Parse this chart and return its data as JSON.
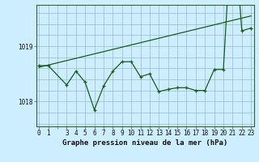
{
  "x_all": [
    0,
    1,
    3,
    4,
    5,
    6,
    7,
    8,
    9,
    10,
    11,
    12,
    13,
    14,
    15,
    16,
    17,
    18,
    19,
    20,
    21,
    22,
    23
  ],
  "actual_y": [
    1018.65,
    1018.65,
    1018.3,
    1018.55,
    1018.35,
    1017.85,
    1018.28,
    1018.55,
    1018.72,
    1018.72,
    1018.45,
    1018.5,
    1018.18,
    1018.22,
    1018.25,
    1018.25,
    1018.2,
    1018.2,
    1018.58,
    1018.58,
    1021.5,
    1019.28,
    1019.33
  ],
  "trend_x": [
    0,
    23
  ],
  "trend_y": [
    1018.62,
    1019.55
  ],
  "bg_color": "#cceeff",
  "line_color": "#1a5c1a",
  "grid_color_v": "#99bbcc",
  "grid_color_h": "#99bbcc",
  "yticks": [
    1018,
    1019
  ],
  "xtick_labels": [
    "0",
    "1",
    "",
    "3",
    "4",
    "5",
    "6",
    "7",
    "8",
    "9",
    "10",
    "11",
    "12",
    "13",
    "14",
    "15",
    "16",
    "17",
    "18",
    "19",
    "20",
    "21",
    "22",
    "23"
  ],
  "xlim": [
    -0.3,
    23.3
  ],
  "ylim": [
    1017.55,
    1019.75
  ],
  "xlabel": "Graphe pression niveau de la mer (hPa)",
  "tick_fontsize": 5.5,
  "xlabel_fontsize": 6.5
}
